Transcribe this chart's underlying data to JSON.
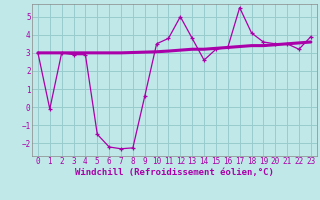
{
  "xlabel": "Windchill (Refroidissement éolien,°C)",
  "xlim": [
    -0.5,
    23.5
  ],
  "ylim": [
    -2.7,
    5.7
  ],
  "yticks": [
    -2,
    -1,
    0,
    1,
    2,
    3,
    4,
    5
  ],
  "xticks": [
    0,
    1,
    2,
    3,
    4,
    5,
    6,
    7,
    8,
    9,
    10,
    11,
    12,
    13,
    14,
    15,
    16,
    17,
    18,
    19,
    20,
    21,
    22,
    23
  ],
  "bg_color": "#c0e8e8",
  "grid_color": "#98cccc",
  "line_color": "#aa00aa",
  "x_data": [
    0,
    1,
    2,
    3,
    4,
    5,
    6,
    7,
    8,
    9,
    10,
    11,
    12,
    13,
    14,
    15,
    16,
    17,
    18,
    19,
    20,
    21,
    22,
    23
  ],
  "y_jagged": [
    3.0,
    -0.1,
    3.0,
    2.9,
    2.9,
    -1.5,
    -2.2,
    -2.3,
    -2.25,
    0.6,
    3.5,
    3.8,
    5.0,
    3.8,
    2.6,
    3.2,
    3.3,
    5.5,
    4.1,
    3.6,
    3.5,
    3.5,
    3.2,
    3.9
  ],
  "y_flat": [
    3.0,
    3.0,
    3.0,
    3.0,
    3.0,
    3.0,
    3.0,
    3.0,
    3.02,
    3.04,
    3.06,
    3.1,
    3.15,
    3.2,
    3.2,
    3.25,
    3.3,
    3.35,
    3.4,
    3.4,
    3.45,
    3.5,
    3.55,
    3.6
  ],
  "tick_fontsize": 5.5,
  "label_fontsize": 6.5
}
